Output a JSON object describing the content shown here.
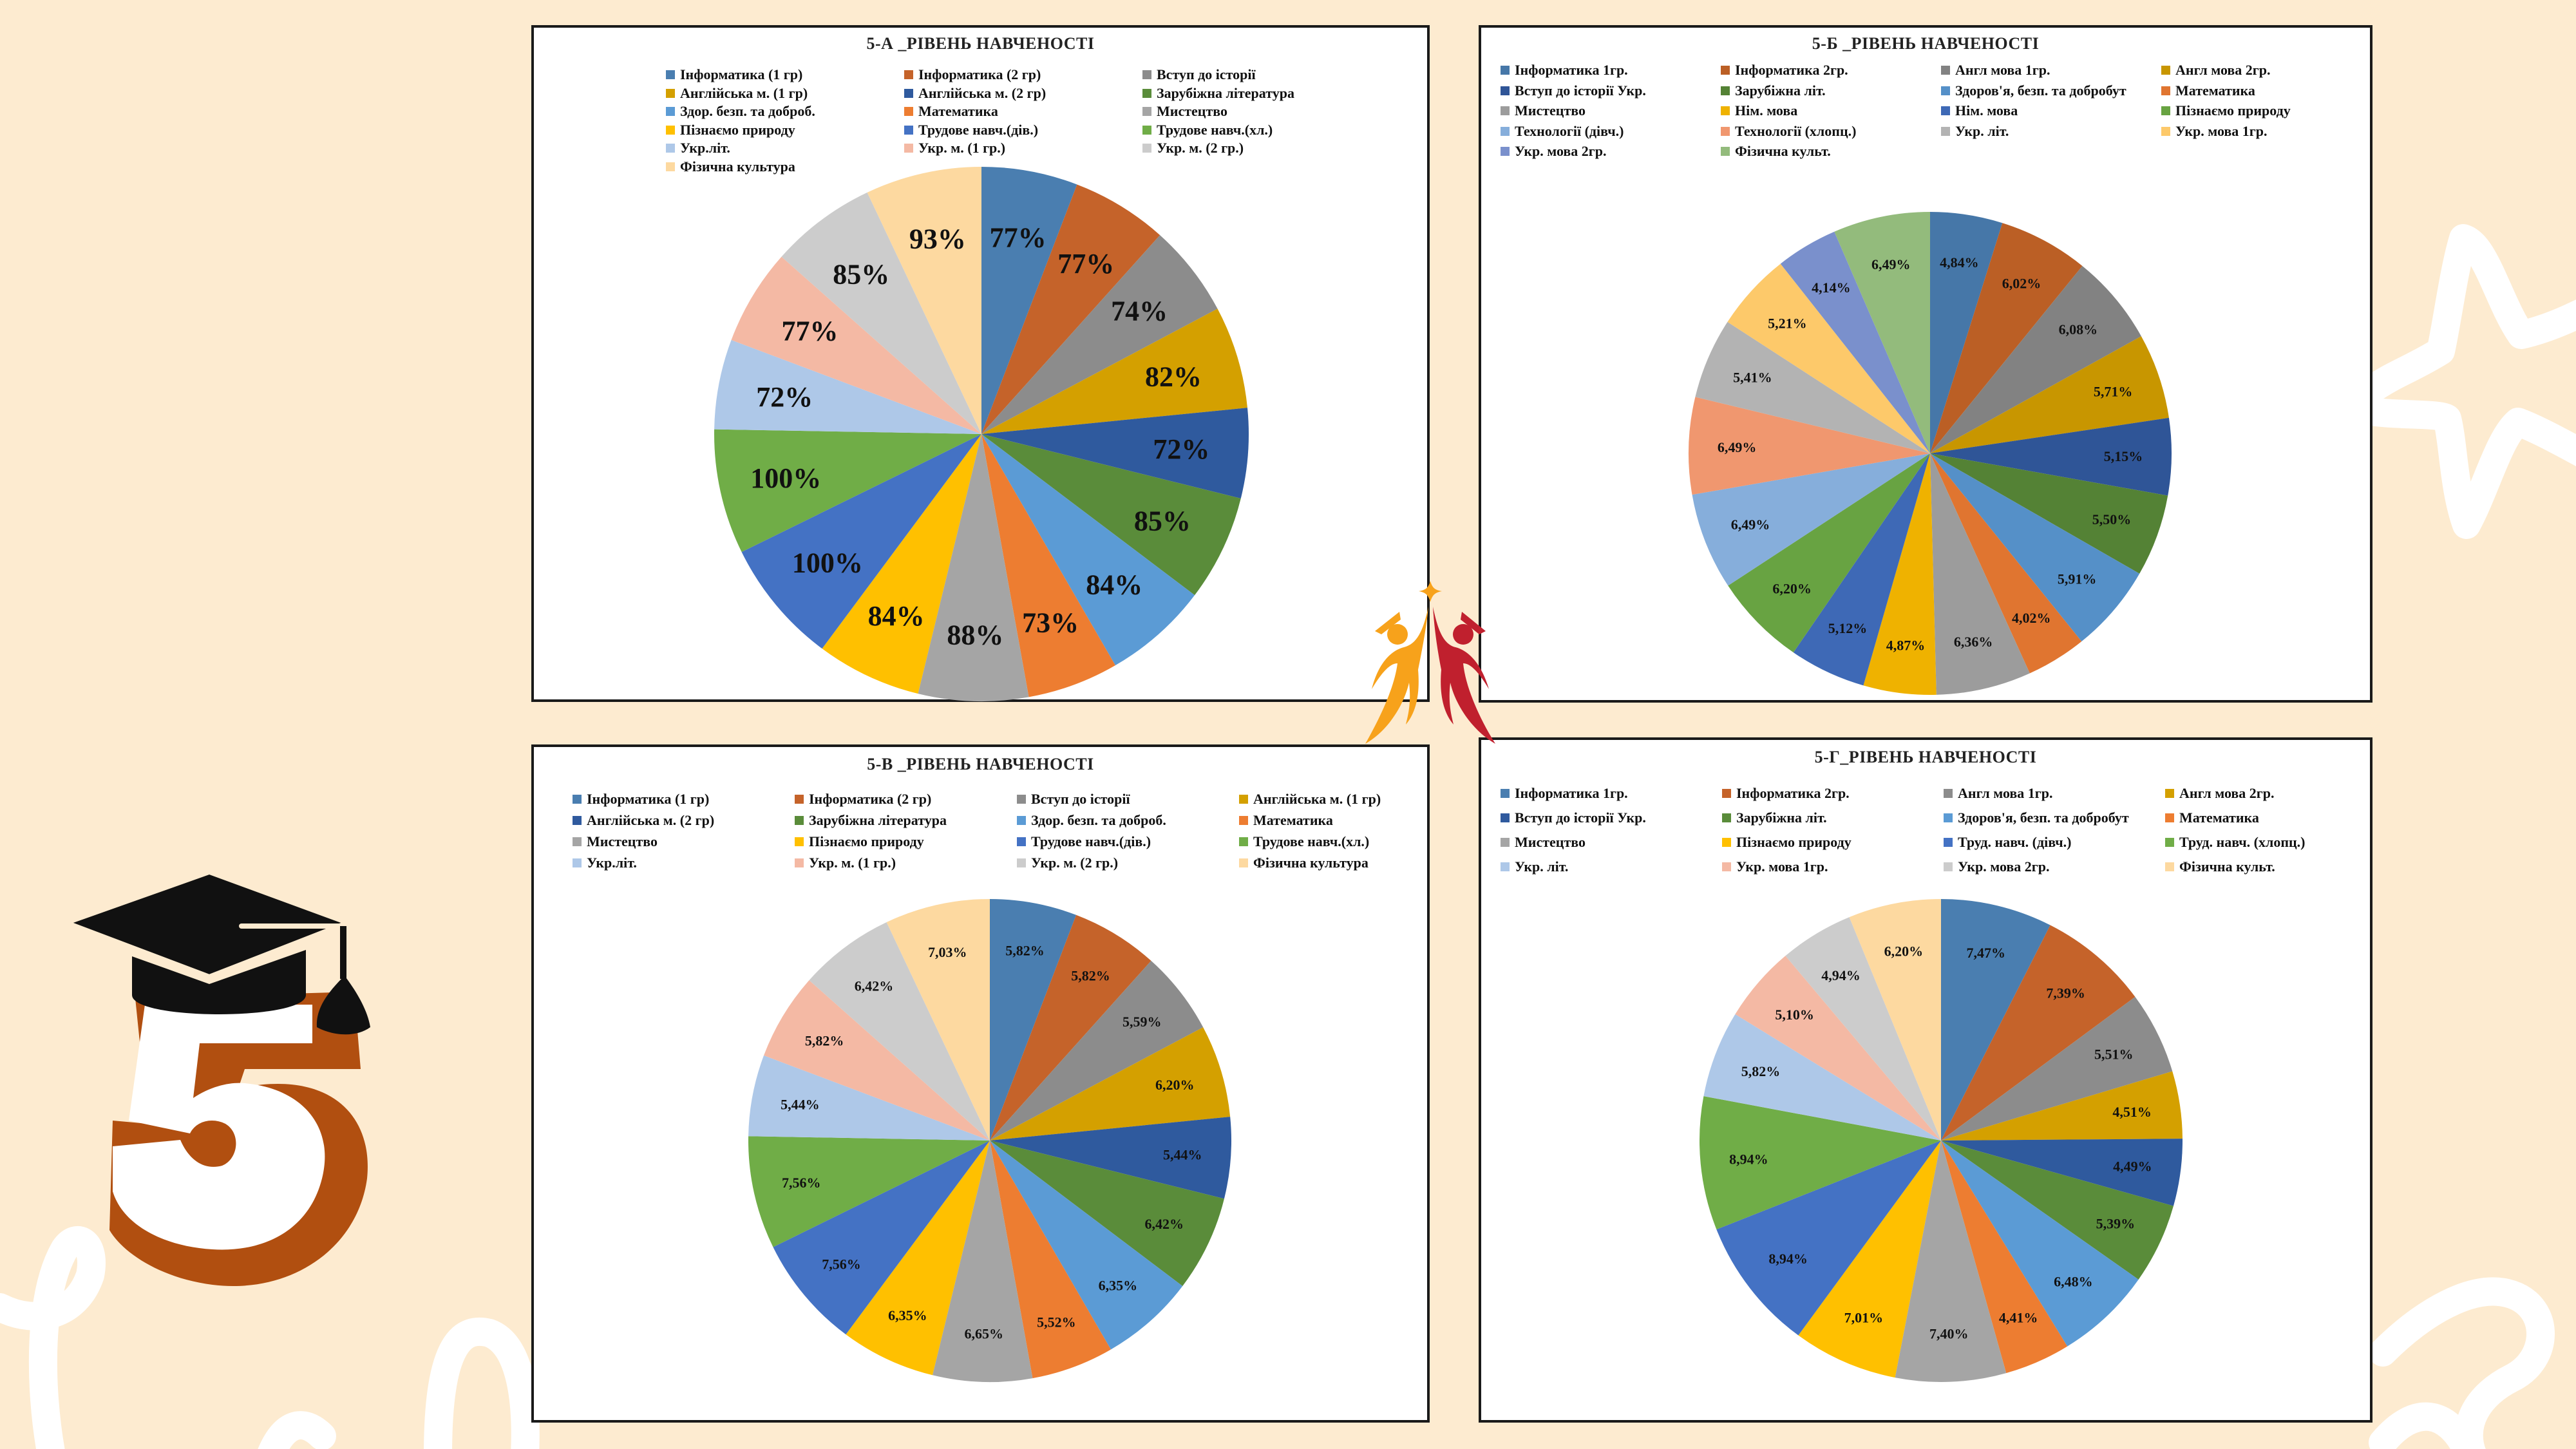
{
  "palette": {
    "background": "#fdebd0",
    "panel": "#ffffff",
    "accent_orange": "#b14f10",
    "logo_orange": "#f7a21b",
    "logo_red": "#c0202e"
  },
  "badge": {
    "digit": "5",
    "icon": "graduation-cap-icon"
  },
  "logo": {
    "icon": "students-reaching-star-icon"
  },
  "chart_data": [
    {
      "id": "5a",
      "type": "pie",
      "title": "5-А _РІВЕНЬ НАВЧЕНОСТІ",
      "label_format": "integer",
      "legend_placement": "top",
      "legend_columns": 3,
      "categories": [
        "Інформатика (1 гр)",
        "Інформатика (2 гр)",
        "Вступ до історії",
        "Англійська м. (1 гр)",
        "Англійська м. (2 гр)",
        "Зарубіжна література",
        "Здор. безп. та доброб.",
        "Математика",
        "Мистецтво",
        "Пізнаємо природу",
        "Трудове навч.(дів.)",
        "Трудове навч.(хл.)",
        "Укр.літ.",
        "Укр. м. (1 гр.)",
        "Укр. м. (2 гр.)",
        "Фізична культура"
      ],
      "values": [
        77,
        77,
        74,
        82,
        72,
        85,
        84,
        73,
        88,
        84,
        100,
        100,
        72,
        77,
        85,
        93
      ],
      "labels": [
        "77%",
        "77%",
        "74%",
        "82%",
        "72%",
        "85%",
        "84%",
        "73%",
        "88%",
        "84%",
        "100%",
        "100%",
        "72%",
        "77%",
        "85%",
        "93%"
      ],
      "colors": [
        "#4a7eb0",
        "#c5632a",
        "#8c8c8c",
        "#d4a000",
        "#2f5a9e",
        "#5a8c3a",
        "#5b9bd5",
        "#ed7d31",
        "#a5a5a5",
        "#ffc000",
        "#4472c4",
        "#70ad47",
        "#aec8e8",
        "#f4b9a4",
        "#cccccc",
        "#fdd9a0"
      ]
    },
    {
      "id": "5b",
      "type": "pie",
      "title": "5-Б _РІВЕНЬ НАВЧЕНОСТІ",
      "label_format": "decimal",
      "legend_placement": "top",
      "legend_columns": 4,
      "categories": [
        "Інформатика 1гр.",
        "Інформатика 2гр.",
        "Англ мова 1гр.",
        "Англ мова 2гр.",
        "Вступ до історії Укр.",
        "Зарубіжна літ.",
        "Здоров'я, безп. та добробут",
        "Математика",
        "Мистецтво",
        "Нім. мова",
        "Нім. мова",
        "Пізнаємо природу",
        "Технології (дівч.)",
        "Технології (хлопц.)",
        "Укр. літ.",
        "Укр. мова 1гр.",
        "Укр. мова 2гр.",
        "Фізична культ."
      ],
      "values": [
        4.84,
        6.02,
        6.08,
        5.71,
        5.15,
        5.5,
        5.91,
        4.02,
        6.36,
        4.87,
        5.12,
        6.2,
        6.49,
        6.49,
        5.41,
        5.21,
        4.14,
        6.49
      ],
      "labels": [
        "4,84%",
        "6,02%",
        "6,08%",
        "5,71%",
        "5,15%",
        "5,50%",
        "5,91%",
        "4,02%",
        "6,36%",
        "4,87%",
        "5,12%",
        "6,20%",
        "6,49%",
        "6,49%",
        "5,41%",
        "5,21%",
        "4,14%",
        "6,49%"
      ],
      "colors": [
        "#4677a8",
        "#bb5f25",
        "#828282",
        "#c89600",
        "#2f5597",
        "#548235",
        "#5590c8",
        "#e07530",
        "#9c9c9c",
        "#efb200",
        "#3e69b6",
        "#68a342",
        "#86aedb",
        "#f0976f",
        "#b3b3b3",
        "#fdc96a",
        "#7a90cc",
        "#93bb7c"
      ]
    },
    {
      "id": "5v",
      "type": "pie",
      "title": "5-В _РІВЕНЬ НАВЧЕНОСТІ",
      "label_format": "decimal",
      "legend_placement": "top",
      "legend_columns": 4,
      "categories": [
        "Інформатика (1 гр)",
        "Інформатика (2 гр)",
        "Вступ до історії",
        "Англійська м. (1 гр)",
        "Англійська м. (2 гр)",
        "Зарубіжна література",
        "Здор. безп. та доброб.",
        "Математика",
        "Мистецтво",
        "Пізнаємо природу",
        "Трудове навч.(дів.)",
        "Трудове навч.(хл.)",
        "Укр.літ.",
        "Укр. м. (1 гр.)",
        "Укр. м. (2 гр.)",
        "Фізична культура"
      ],
      "values": [
        5.82,
        5.82,
        5.59,
        6.2,
        5.44,
        6.42,
        6.35,
        5.52,
        6.65,
        6.35,
        7.56,
        7.56,
        5.44,
        5.82,
        6.42,
        7.03
      ],
      "labels": [
        "5,82%",
        "5,82%",
        "5,59%",
        "6,20%",
        "5,44%",
        "6,42%",
        "6,35%",
        "5,52%",
        "6,65%",
        "6,35%",
        "7,56%",
        "7,56%",
        "5,44%",
        "5,82%",
        "6,42%",
        "7,03%"
      ],
      "colors": [
        "#4a7eb0",
        "#c5632a",
        "#8c8c8c",
        "#d4a000",
        "#2f5a9e",
        "#5a8c3a",
        "#5b9bd5",
        "#ed7d31",
        "#a5a5a5",
        "#ffc000",
        "#4472c4",
        "#70ad47",
        "#aec8e8",
        "#f4b9a4",
        "#cccccc",
        "#fdd9a0"
      ]
    },
    {
      "id": "5g",
      "type": "pie",
      "title": "5-Г_РІВЕНЬ НАВЧЕНОСТІ",
      "label_format": "decimal",
      "legend_placement": "top",
      "legend_columns": 4,
      "categories": [
        "Інформатика 1гр.",
        "Інформатика 2гр.",
        "Англ мова 1гр.",
        "Англ мова 2гр.",
        "Вступ до історії Укр.",
        "Зарубіжна літ.",
        "Здоров'я, безп. та добробут",
        "Математика",
        "Мистецтво",
        "Пізнаємо природу",
        "Труд. навч. (дівч.)",
        "Труд. навч. (хлопц.)",
        "Укр. літ.",
        "Укр. мова 1гр.",
        "Укр. мова 2гр.",
        "Фізична культ."
      ],
      "values": [
        7.47,
        7.39,
        5.51,
        4.51,
        4.49,
        5.39,
        6.48,
        4.41,
        7.4,
        7.01,
        8.94,
        8.94,
        5.82,
        5.1,
        4.94,
        6.2
      ],
      "labels": [
        "7,47%",
        "7,39%",
        "5,51%",
        "4,51%",
        "4,49%",
        "5,39%",
        "6,48%",
        "4,41%",
        "7,40%",
        "7,01%",
        "8,94%",
        "8,94%",
        "5,82%",
        "5,10%",
        "4,94%",
        "6,20%"
      ],
      "colors": [
        "#4a7eb0",
        "#c5632a",
        "#8c8c8c",
        "#d4a000",
        "#2f5a9e",
        "#5a8c3a",
        "#5b9bd5",
        "#ed7d31",
        "#a5a5a5",
        "#ffc000",
        "#4472c4",
        "#70ad47",
        "#aec8e8",
        "#f4b9a4",
        "#cccccc",
        "#fdd9a0"
      ]
    }
  ]
}
